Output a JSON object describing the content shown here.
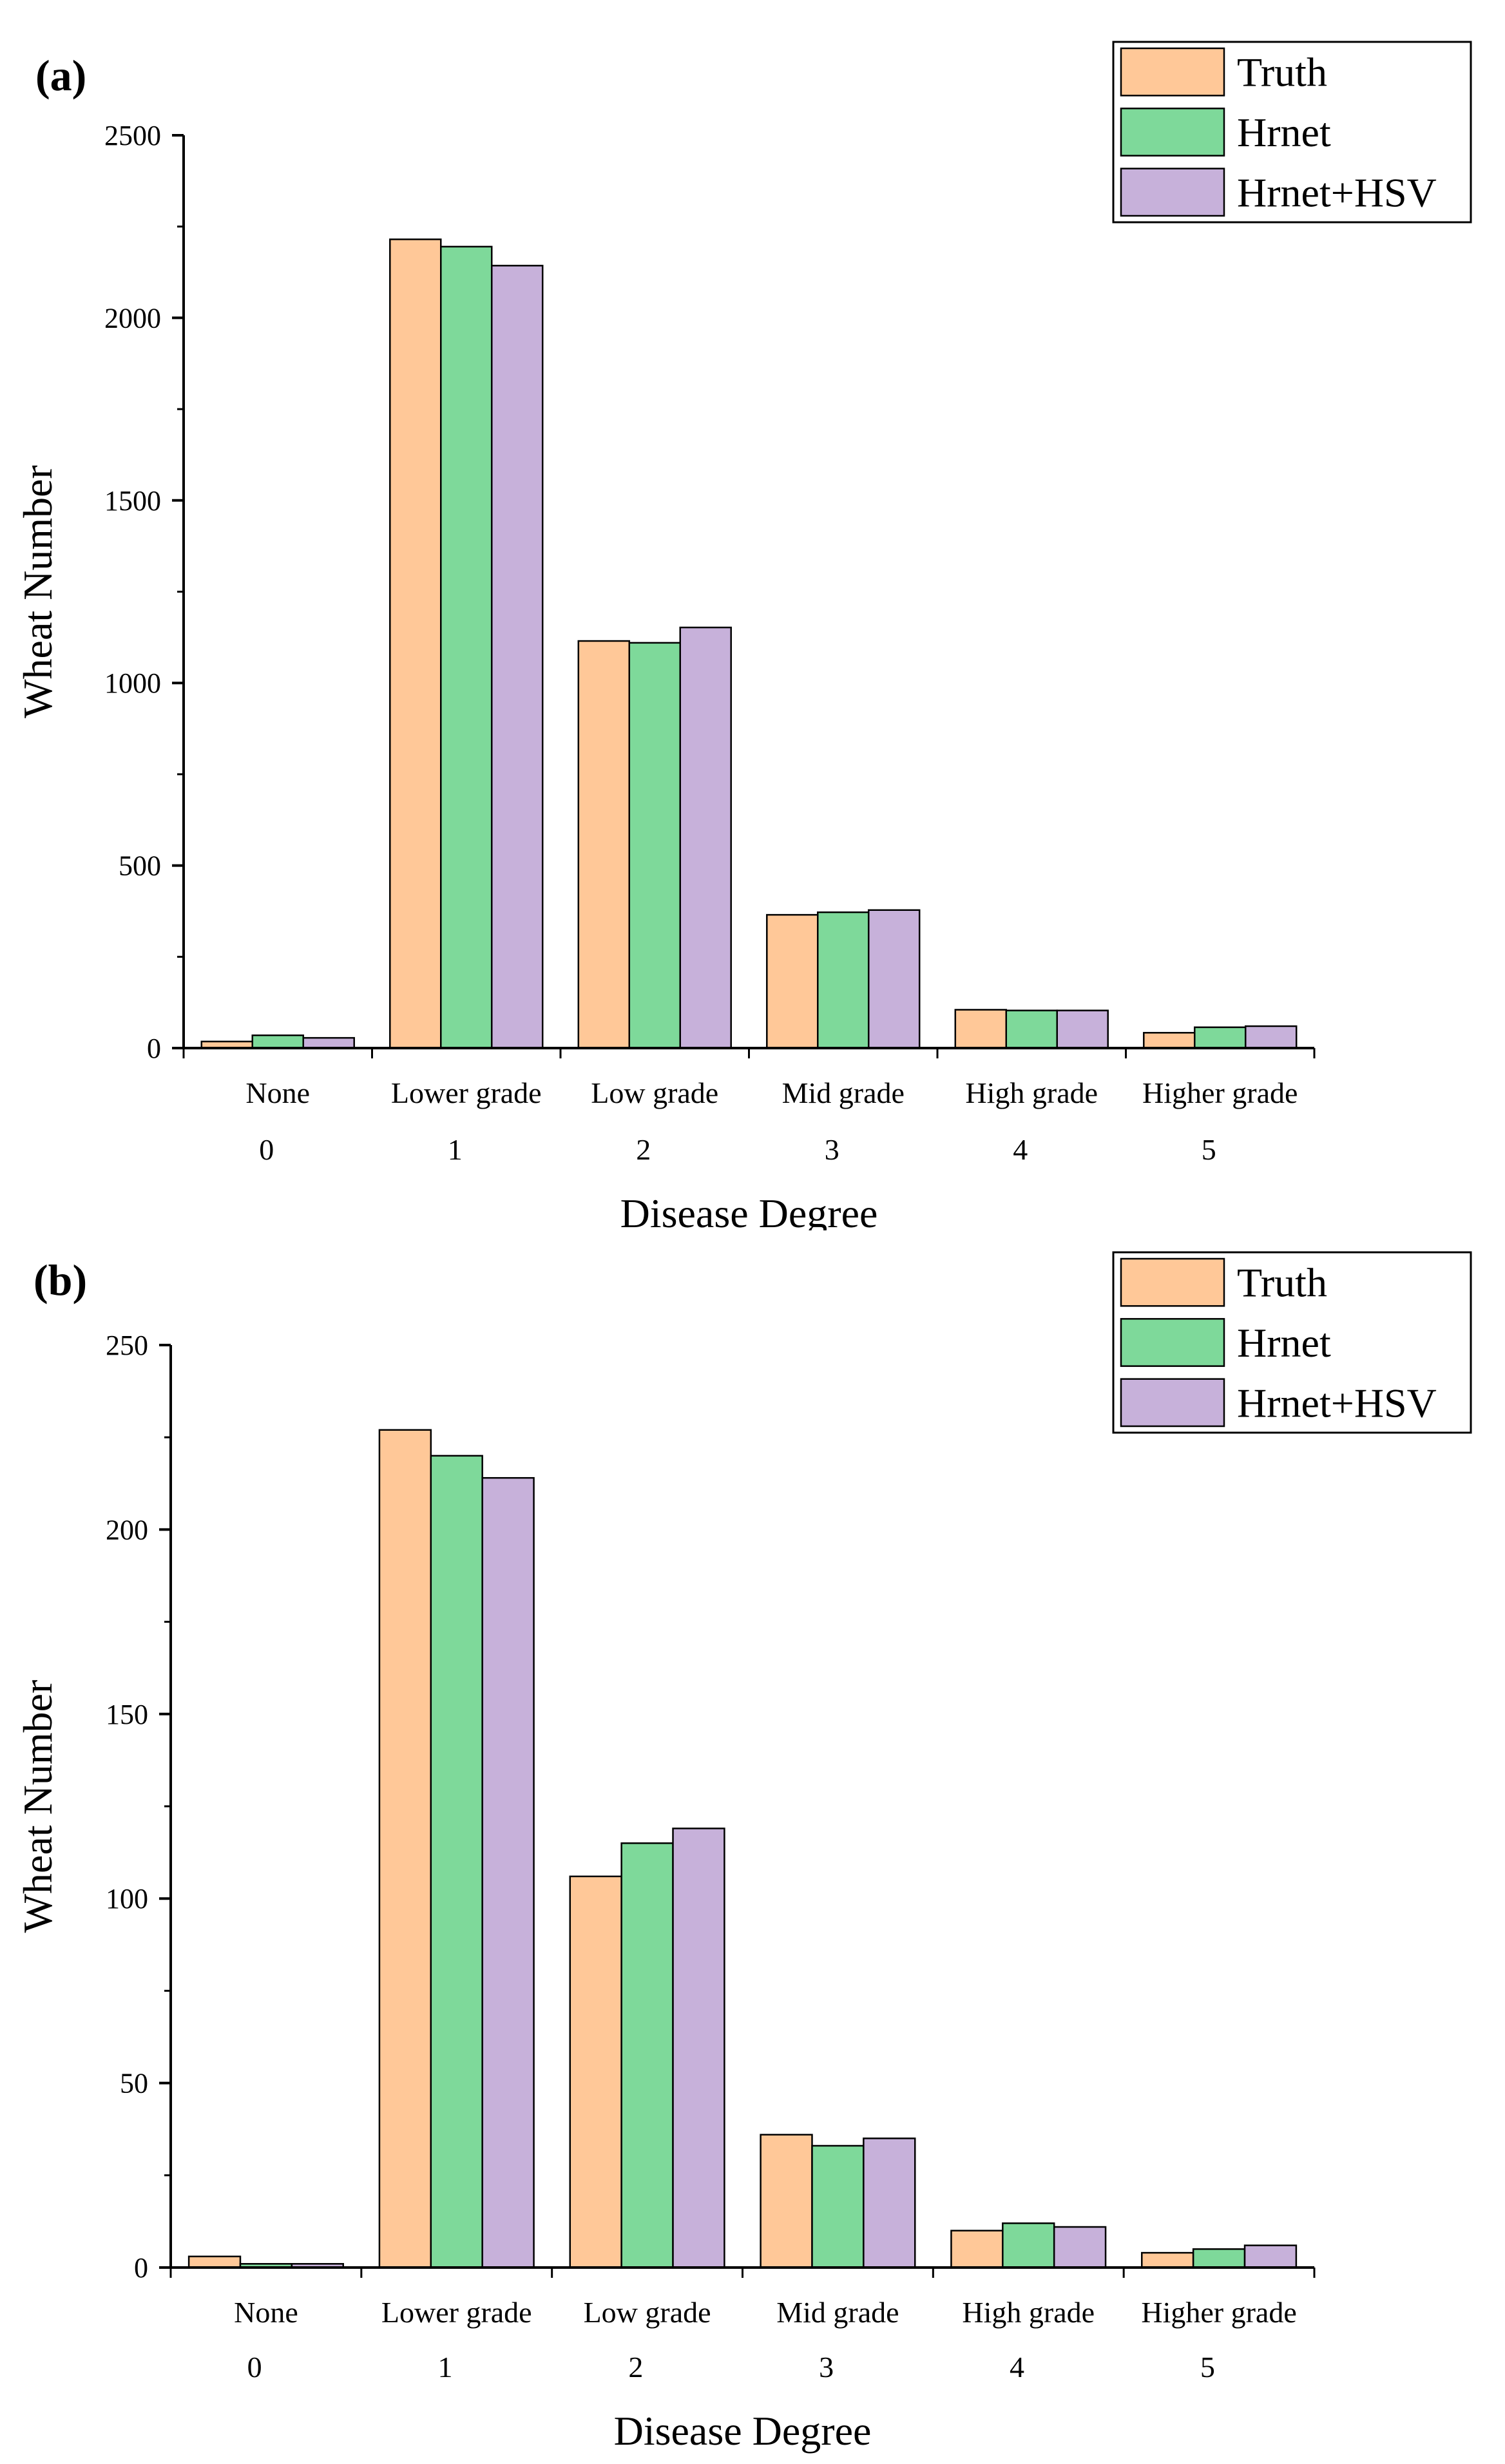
{
  "colors": {
    "truth": "#FFC898",
    "hrnet": "#7ED99A",
    "hrnet_hsv": "#C7B1DA",
    "bar_stroke": "#000000",
    "axis": "#000000"
  },
  "legend": [
    "Truth",
    "Hrnet",
    "Hrnet+HSV"
  ],
  "chart_data": [
    {
      "panel_label": "(a)",
      "type": "bar",
      "categories": [
        "None",
        "Lower grade",
        "Low grade",
        "Mid grade",
        "High grade",
        "Higher grade"
      ],
      "category_numbers": [
        "0",
        "1",
        "2",
        "3",
        "4",
        "5"
      ],
      "series": [
        {
          "name": "Truth",
          "values": [
            18,
            2215,
            1115,
            365,
            105,
            42
          ]
        },
        {
          "name": "Hrnet",
          "values": [
            35,
            2195,
            1110,
            372,
            103,
            57
          ]
        },
        {
          "name": "Hrnet+HSV",
          "values": [
            28,
            2143,
            1152,
            378,
            103,
            60
          ]
        }
      ],
      "xlabel": "Disease Degree",
      "ylabel": "Wheat Number",
      "ylim": [
        0,
        2500
      ],
      "yticks": [
        0,
        500,
        1000,
        1500,
        2000,
        2500
      ],
      "legend_position": "top-right",
      "grid": false
    },
    {
      "panel_label": "(b)",
      "type": "bar",
      "categories": [
        "None",
        "Lower grade",
        "Low grade",
        "Mid grade",
        "High grade",
        "Higher grade"
      ],
      "category_numbers": [
        "0",
        "1",
        "2",
        "3",
        "4",
        "5"
      ],
      "series": [
        {
          "name": "Truth",
          "values": [
            3,
            227,
            106,
            36,
            10,
            4
          ]
        },
        {
          "name": "Hrnet",
          "values": [
            1,
            220,
            115,
            33,
            12,
            5
          ]
        },
        {
          "name": "Hrnet+HSV",
          "values": [
            1,
            214,
            119,
            35,
            11,
            6
          ]
        }
      ],
      "xlabel": "Disease Degree",
      "ylabel": "Wheat Number",
      "ylim": [
        0,
        250
      ],
      "yticks": [
        0,
        50,
        100,
        150,
        200,
        250
      ],
      "legend_position": "top-right",
      "grid": false
    }
  ]
}
